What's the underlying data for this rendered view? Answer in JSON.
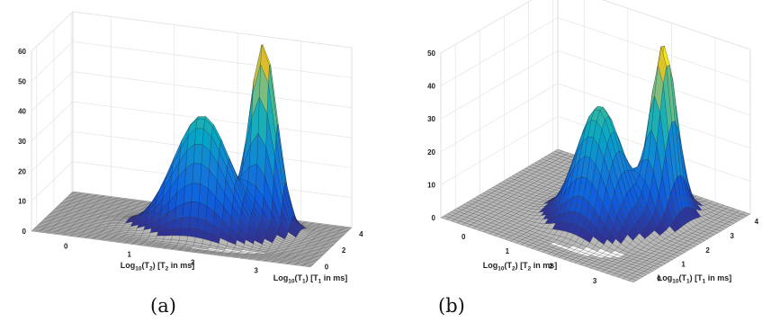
{
  "chart_data": [
    {
      "type": "surface",
      "panel": "(a)",
      "xlabel": "Log10(T2)  [T2 in ms]",
      "ylabel": "Log10(T1)  [T1 in ms]",
      "xticks": [
        "0",
        "1",
        "2",
        "3"
      ],
      "yticks": [
        "0",
        "2",
        "4"
      ],
      "zticks": [
        "0",
        "10",
        "20",
        "30",
        "40",
        "50",
        "60"
      ],
      "xlim": [
        -0.6,
        3.8
      ],
      "ylim": [
        -0.6,
        4.2
      ],
      "zlim": [
        0,
        60
      ],
      "grid": true,
      "colormap": "parula",
      "peaks": [
        {
          "x": 1.8,
          "y": 1.6,
          "height": 41
        },
        {
          "x": 2.6,
          "y": 2.8,
          "height": 62
        }
      ]
    },
    {
      "type": "surface",
      "panel": "(b)",
      "xlabel": "Log10(T2)  [T2 in ms]",
      "ylabel": "Log10(T1)  [T1 in ms]",
      "xticks": [
        "0",
        "1",
        "2",
        "3"
      ],
      "yticks": [
        "0",
        "1",
        "2",
        "3",
        "4"
      ],
      "zticks": [
        "0",
        "10",
        "20",
        "30",
        "40",
        "50"
      ],
      "xlim": [
        -0.6,
        3.8
      ],
      "ylim": [
        -0.6,
        4.2
      ],
      "zlim": [
        0,
        50
      ],
      "grid": true,
      "colormap": "parula",
      "peaks": [
        {
          "x": 1.8,
          "y": 1.6,
          "height": 37
        },
        {
          "x": 2.6,
          "y": 2.8,
          "height": 52
        }
      ]
    }
  ],
  "captions": {
    "a": "(a)",
    "b": "(b)"
  }
}
